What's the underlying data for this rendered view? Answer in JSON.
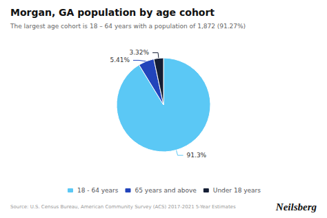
{
  "chart_data": {
    "type": "pie",
    "title": "Morgan, GA population by age cohort",
    "subtitle": "The largest age cohort is 18 – 64 years with a population of 1,872 (91.27%)",
    "categories": [
      "18 - 64 years",
      "65 years and above",
      "Under 18 years"
    ],
    "values": [
      91.3,
      5.41,
      3.32
    ],
    "value_labels": [
      "91.3%",
      "5.41%",
      "3.32%"
    ],
    "colors": [
      "#5BC8F5",
      "#2244BB",
      "#151E35"
    ],
    "data_labels": true,
    "legend": "bottom",
    "annotations": [
      "Source: U.S. Census Bureau, American Community Survey (ACS) 2017-2021 5-Year Estimates",
      "Neilsberg"
    ]
  }
}
